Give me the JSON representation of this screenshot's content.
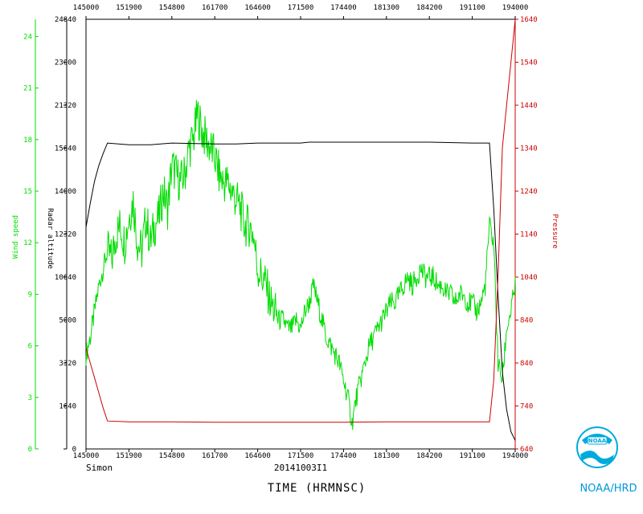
{
  "chart_data": {
    "type": "line",
    "xlabel": "TIME (HRMNSC)",
    "storm_name": "Simon",
    "flight_id": "20141003I1",
    "agency": "NOAA/HRD",
    "x_ticks": [
      "145000",
      "151900",
      "154800",
      "161700",
      "164600",
      "171500",
      "174400",
      "181300",
      "184200",
      "191100",
      "194000"
    ],
    "y_left_wind": {
      "label": "Wind speed",
      "ticks": [
        "0",
        "3",
        "6",
        "9",
        "12",
        "15",
        "18",
        "21",
        "24"
      ],
      "range": [
        0,
        25
      ],
      "color": "#00dd00"
    },
    "y_left_alt": {
      "label": "Radar altitude",
      "ticks": [
        "0",
        "1640",
        "3320",
        "5000",
        "10640",
        "12320",
        "14000",
        "15640",
        "21320",
        "23000",
        "24840"
      ],
      "color": "#000000"
    },
    "y_right_pressure": {
      "label": "Pressure",
      "ticks": [
        "640",
        "740",
        "840",
        "840",
        "1040",
        "1140",
        "1240",
        "1340",
        "1440",
        "1540",
        "1640"
      ],
      "color": "#cc0000"
    },
    "series": [
      {
        "name": "Wind speed",
        "color": "#00dd00",
        "x_frac": [
          0.0,
          0.01,
          0.02,
          0.03,
          0.04,
          0.05,
          0.06,
          0.07,
          0.08,
          0.09,
          0.1,
          0.11,
          0.12,
          0.13,
          0.14,
          0.15,
          0.16,
          0.17,
          0.18,
          0.19,
          0.2,
          0.21,
          0.22,
          0.23,
          0.24,
          0.25,
          0.26,
          0.27,
          0.28,
          0.29,
          0.3,
          0.31,
          0.32,
          0.33,
          0.34,
          0.35,
          0.36,
          0.37,
          0.38,
          0.39,
          0.4,
          0.41,
          0.42,
          0.43,
          0.44,
          0.45,
          0.46,
          0.47,
          0.48,
          0.49,
          0.5,
          0.51,
          0.52,
          0.53,
          0.54,
          0.55,
          0.56,
          0.57,
          0.58,
          0.59,
          0.6,
          0.61,
          0.62,
          0.63,
          0.64,
          0.65,
          0.66,
          0.67,
          0.68,
          0.69,
          0.7,
          0.71,
          0.72,
          0.73,
          0.74,
          0.75,
          0.76,
          0.77,
          0.78,
          0.79,
          0.8,
          0.81,
          0.82,
          0.83,
          0.84,
          0.85,
          0.86,
          0.87,
          0.88,
          0.89,
          0.9,
          0.91,
          0.92,
          0.93,
          0.94,
          0.95,
          0.96,
          0.97,
          0.98,
          0.99,
          1.0
        ],
        "values": [
          5.5,
          6.5,
          8.0,
          9.5,
          10.5,
          11.5,
          11.0,
          12.5,
          13.0,
          12.0,
          13.5,
          14.5,
          12.0,
          11.5,
          13.5,
          12.0,
          13.0,
          13.5,
          15.0,
          14.0,
          16.5,
          16.0,
          15.5,
          16.0,
          17.5,
          18.0,
          19.5,
          18.5,
          18.0,
          17.5,
          17.0,
          16.0,
          15.5,
          15.5,
          15.0,
          14.5,
          14.0,
          13.0,
          13.0,
          12.5,
          10.5,
          10.0,
          9.5,
          8.5,
          8.0,
          7.5,
          7.5,
          7.0,
          7.0,
          7.5,
          7.0,
          8.0,
          8.5,
          9.5,
          8.5,
          7.5,
          6.5,
          6.0,
          5.5,
          5.0,
          4.0,
          3.0,
          1.5,
          3.0,
          4.0,
          5.0,
          6.0,
          6.5,
          7.0,
          7.5,
          8.0,
          8.5,
          8.5,
          9.0,
          9.5,
          10.0,
          9.5,
          10.0,
          10.5,
          10.0,
          10.0,
          10.0,
          9.5,
          9.5,
          9.0,
          9.0,
          8.5,
          9.0,
          9.0,
          8.5,
          8.5,
          8.0,
          8.5,
          9.5,
          13.0,
          12.0,
          5.0,
          4.0,
          7.0,
          8.0,
          9.5
        ]
      },
      {
        "name": "Radar altitude",
        "color": "#000000",
        "x_frac": [
          0.0,
          0.01,
          0.02,
          0.03,
          0.04,
          0.05,
          0.1,
          0.15,
          0.2,
          0.3,
          0.35,
          0.4,
          0.5,
          0.52,
          0.6,
          0.7,
          0.8,
          0.9,
          0.94,
          0.95,
          0.96,
          0.97,
          0.98,
          0.99,
          1.0
        ],
        "values": [
          12900,
          14300,
          15600,
          16500,
          17200,
          17800,
          17700,
          17700,
          17800,
          17750,
          17750,
          17800,
          17800,
          17850,
          17850,
          17850,
          17850,
          17800,
          17800,
          14000,
          9000,
          4500,
          2300,
          1000,
          500
        ]
      },
      {
        "name": "Pressure",
        "color": "#cc0000",
        "x_frac": [
          0.0,
          0.01,
          0.02,
          0.03,
          0.04,
          0.05,
          0.1,
          0.2,
          0.3,
          0.4,
          0.5,
          0.6,
          0.7,
          0.8,
          0.9,
          0.94,
          0.95,
          0.96,
          0.97,
          0.98,
          0.99,
          1.0
        ],
        "values": [
          875,
          840,
          805,
          770,
          735,
          705,
          703,
          703,
          702,
          702,
          702,
          702,
          703,
          703,
          703,
          703,
          800,
          1040,
          1340,
          1440,
          1540,
          1640
        ]
      }
    ]
  }
}
